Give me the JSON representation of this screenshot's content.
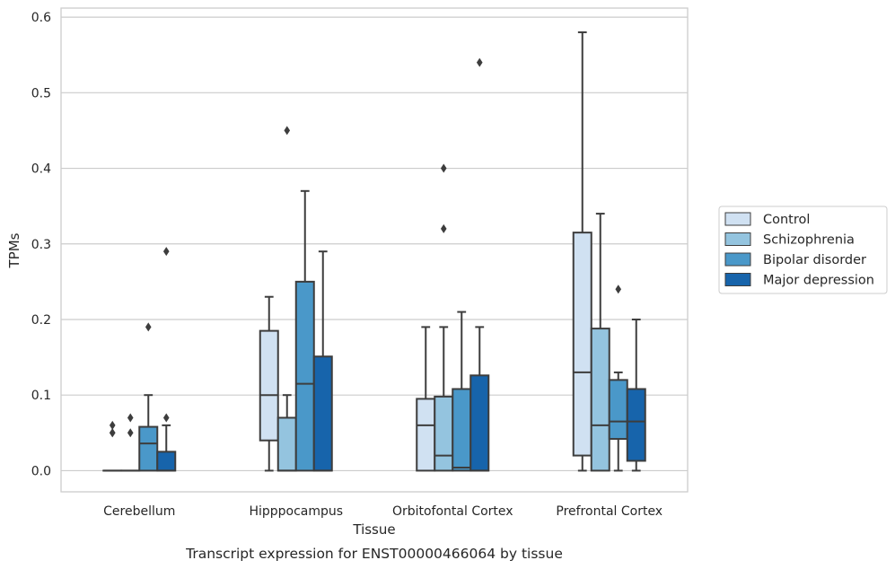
{
  "caption": "Transcript expression for ENST00000466064 by tissue",
  "chart_data": {
    "type": "box",
    "xlabel": "Tissue",
    "ylabel": "TPMs",
    "ylim": [
      -0.028,
      0.612
    ],
    "yticks": [
      "0.0",
      "0.1",
      "0.2",
      "0.3",
      "0.4",
      "0.5",
      "0.6"
    ],
    "grid": "horizontal",
    "legend_position": "right",
    "categories": [
      "Cerebellum",
      "Hipppocampus",
      "Orbitofontal Cortex",
      "Prefrontal Cortex"
    ],
    "series": [
      {
        "name": "Control",
        "color": "#d0e1f2",
        "boxes": [
          {
            "whislo": 0,
            "q1": 0,
            "med": 0,
            "q3": 0,
            "whishi": 0,
            "fliers": [
              0.05,
              0.06,
              0.05
            ]
          },
          {
            "whislo": 0,
            "q1": 0.04,
            "med": 0.1,
            "q3": 0.185,
            "whishi": 0.23,
            "fliers": []
          },
          {
            "whislo": 0,
            "q1": 0,
            "med": 0.06,
            "q3": 0.095,
            "whishi": 0.19,
            "fliers": []
          },
          {
            "whislo": 0,
            "q1": 0.02,
            "med": 0.13,
            "q3": 0.315,
            "whishi": 0.58,
            "fliers": []
          }
        ]
      },
      {
        "name": "Schizophrenia",
        "color": "#94c4df",
        "boxes": [
          {
            "whislo": 0,
            "q1": 0,
            "med": 0,
            "q3": 0,
            "whishi": 0,
            "fliers": [
              0.05,
              0.07
            ]
          },
          {
            "whislo": 0,
            "q1": 0,
            "med": 0,
            "q3": 0.07,
            "whishi": 0.1,
            "fliers": [
              0.45
            ]
          },
          {
            "whislo": 0,
            "q1": 0,
            "med": 0.02,
            "q3": 0.098,
            "whishi": 0.19,
            "fliers": [
              0.32,
              0.4
            ]
          },
          {
            "whislo": 0,
            "q1": 0,
            "med": 0.06,
            "q3": 0.188,
            "whishi": 0.34,
            "fliers": []
          }
        ]
      },
      {
        "name": "Bipolar disorder",
        "color": "#4a98c9",
        "boxes": [
          {
            "whislo": 0,
            "q1": 0,
            "med": 0.036,
            "q3": 0.058,
            "whishi": 0.1,
            "fliers": [
              0.19
            ]
          },
          {
            "whislo": 0,
            "q1": 0,
            "med": 0.115,
            "q3": 0.25,
            "whishi": 0.37,
            "fliers": []
          },
          {
            "whislo": 0,
            "q1": 0,
            "med": 0.004,
            "q3": 0.108,
            "whishi": 0.21,
            "fliers": []
          },
          {
            "whislo": 0,
            "q1": 0.042,
            "med": 0.065,
            "q3": 0.12,
            "whishi": 0.13,
            "fliers": [
              0.24
            ]
          }
        ]
      },
      {
        "name": "Major depression",
        "color": "#1764ab",
        "boxes": [
          {
            "whislo": 0,
            "q1": 0,
            "med": 0,
            "q3": 0.025,
            "whishi": 0.06,
            "fliers": [
              0.07,
              0.29
            ]
          },
          {
            "whislo": 0,
            "q1": 0,
            "med": 0,
            "q3": 0.151,
            "whishi": 0.29,
            "fliers": []
          },
          {
            "whislo": 0,
            "q1": 0,
            "med": 0,
            "q3": 0.126,
            "whishi": 0.19,
            "fliers": [
              0.54
            ]
          },
          {
            "whislo": 0,
            "q1": 0.013,
            "med": 0.065,
            "q3": 0.108,
            "whishi": 0.2,
            "fliers": []
          }
        ]
      }
    ]
  }
}
